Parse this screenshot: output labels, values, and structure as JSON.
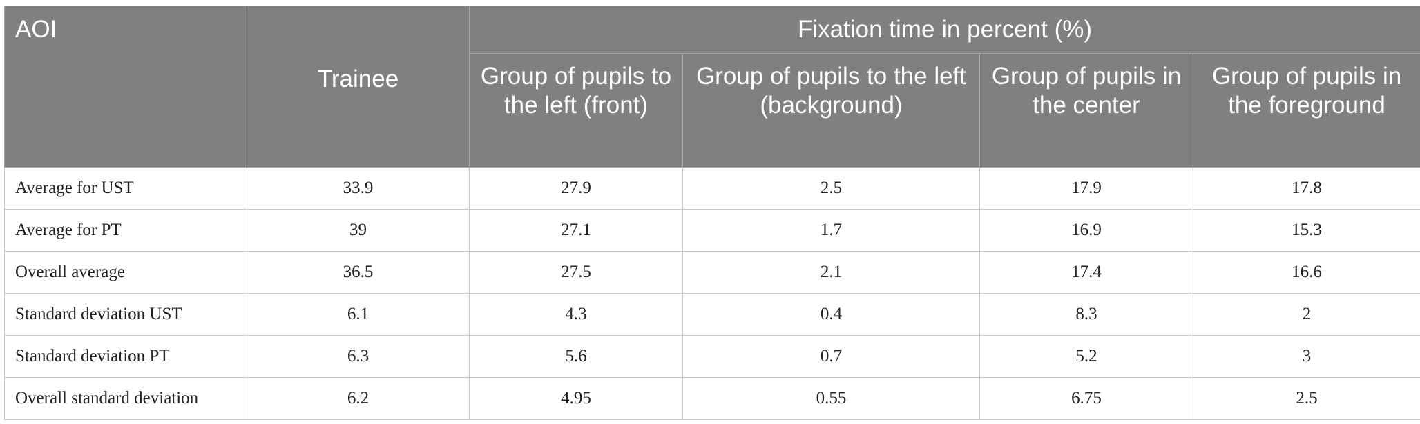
{
  "table": {
    "corner_header": "AOI",
    "group_header": "Fixation time in percent (%)",
    "columns": [
      "Trainee",
      "Group of pupils to the left (front)",
      "Group of pupils to the left (background)",
      "Group of pupils in the center",
      "Group of pupils in the foreground"
    ],
    "rows": [
      {
        "label": "Average for UST",
        "values": [
          "33.9",
          "27.9",
          "2.5",
          "17.9",
          "17.8"
        ]
      },
      {
        "label": "Average for PT",
        "values": [
          "39",
          "27.1",
          "1.7",
          "16.9",
          "15.3"
        ]
      },
      {
        "label": "Overall average",
        "values": [
          "36.5",
          "27.5",
          "2.1",
          "17.4",
          "16.6"
        ]
      },
      {
        "label": "Standard deviation UST",
        "values": [
          "6.1",
          "4.3",
          "0.4",
          "8.3",
          "2"
        ]
      },
      {
        "label": "Standard deviation PT",
        "values": [
          "6.3",
          "5.6",
          "0.7",
          "5.2",
          "3"
        ]
      },
      {
        "label": "Overall standard deviation",
        "values": [
          "6.2",
          "4.95",
          "0.55",
          "6.75",
          "2.5"
        ]
      }
    ]
  },
  "colors": {
    "header_background": "#808080",
    "header_text": "#ffffff",
    "body_text": "#222222",
    "grid_line": "#c8c8c8"
  }
}
